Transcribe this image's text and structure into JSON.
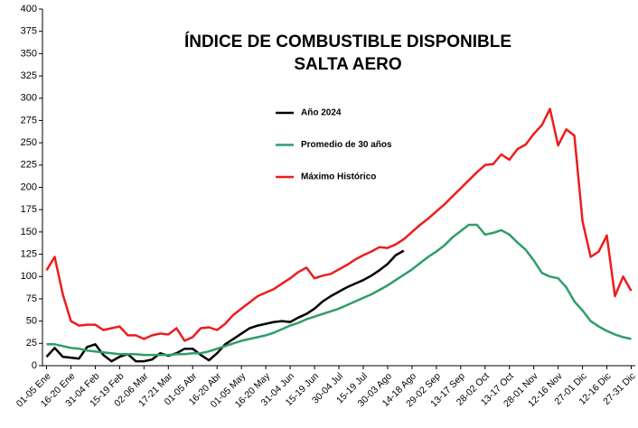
{
  "chart_data": {
    "type": "line",
    "title": "ÍNDICE DE COMBUSTIBLE DISPONIBLE",
    "subtitle": "SALTA AERO",
    "categories": [
      "01-05 Ene",
      null,
      null,
      "16-20 Ene",
      null,
      null,
      "31-04 Feb",
      null,
      null,
      "15-19 Feb",
      null,
      null,
      "02-06 Mar",
      null,
      null,
      "17-21 Mar",
      null,
      null,
      "01-05 Abr",
      null,
      null,
      "16-20 Abr",
      null,
      null,
      "01-05 May",
      null,
      null,
      "16-20 May",
      null,
      null,
      "31-04 Jun",
      null,
      null,
      "15-19 Jun",
      null,
      null,
      "30-04 Jul",
      null,
      null,
      "15-19 Jul",
      null,
      null,
      "30-03 Ago",
      null,
      null,
      "14-18 Ago",
      null,
      null,
      "29-02 Sep",
      null,
      null,
      "13-17 Sep",
      null,
      null,
      "28-02 Oct",
      null,
      null,
      "13-17 Oct",
      null,
      null,
      "28-01 Nov",
      null,
      null,
      "12-16 Nov",
      null,
      null,
      "27-01 Dic",
      null,
      null,
      "12-16 Dic",
      null,
      null,
      "27-31 Dic"
    ],
    "series": [
      {
        "name": "Año 2024",
        "color": "#000000",
        "values": [
          10,
          20,
          10,
          9,
          8,
          21,
          24,
          12,
          5,
          10,
          13,
          5,
          5,
          7,
          14,
          11,
          14,
          19,
          19,
          12,
          6,
          14,
          24,
          30,
          36,
          42,
          45,
          47,
          49,
          50,
          49,
          54,
          58,
          64,
          72,
          78,
          83,
          88,
          92,
          96,
          101,
          107,
          114,
          124,
          129,
          null,
          null,
          null,
          null,
          null,
          null,
          null,
          null,
          null,
          null,
          null,
          null,
          null,
          null,
          null,
          null,
          null,
          null,
          null,
          null,
          null,
          null,
          null,
          null,
          null,
          null,
          null,
          null
        ]
      },
      {
        "name": "Promedio de 30 años",
        "color": "#2e9e6a",
        "values": [
          24,
          24,
          22,
          20,
          19,
          17,
          16,
          15,
          14,
          13,
          13,
          13,
          12,
          12,
          12,
          12,
          13,
          13,
          14,
          14,
          16,
          19,
          22,
          25,
          28,
          30,
          32,
          34,
          37,
          41,
          45,
          48,
          52,
          55,
          58,
          61,
          64,
          68,
          72,
          76,
          80,
          85,
          90,
          96,
          102,
          108,
          115,
          122,
          128,
          135,
          144,
          151,
          158,
          158,
          147,
          149,
          152,
          147,
          138,
          130,
          118,
          104,
          100,
          98,
          88,
          72,
          62,
          50,
          44,
          39,
          35,
          32,
          30
        ]
      },
      {
        "name": "Máximo Histórico",
        "color": "#ee1c1c",
        "values": [
          107,
          122,
          80,
          50,
          45,
          46,
          46,
          40,
          42,
          44,
          34,
          34,
          30,
          34,
          36,
          35,
          42,
          28,
          32,
          42,
          43,
          40,
          47,
          57,
          64,
          71,
          78,
          82,
          86,
          92,
          98,
          105,
          110,
          98,
          101,
          103,
          108,
          113,
          119,
          124,
          128,
          133,
          132,
          136,
          142,
          150,
          158,
          165,
          173,
          181,
          190,
          199,
          208,
          217,
          225,
          226,
          237,
          231,
          243,
          248,
          260,
          270,
          288,
          247,
          265,
          258,
          162,
          122,
          128,
          146,
          78,
          100,
          84
        ]
      }
    ],
    "ylim": [
      0,
      400
    ],
    "yticks": [
      0,
      25,
      50,
      75,
      100,
      125,
      150,
      175,
      200,
      225,
      250,
      275,
      300,
      325,
      350,
      375,
      400
    ],
    "grid": false
  }
}
